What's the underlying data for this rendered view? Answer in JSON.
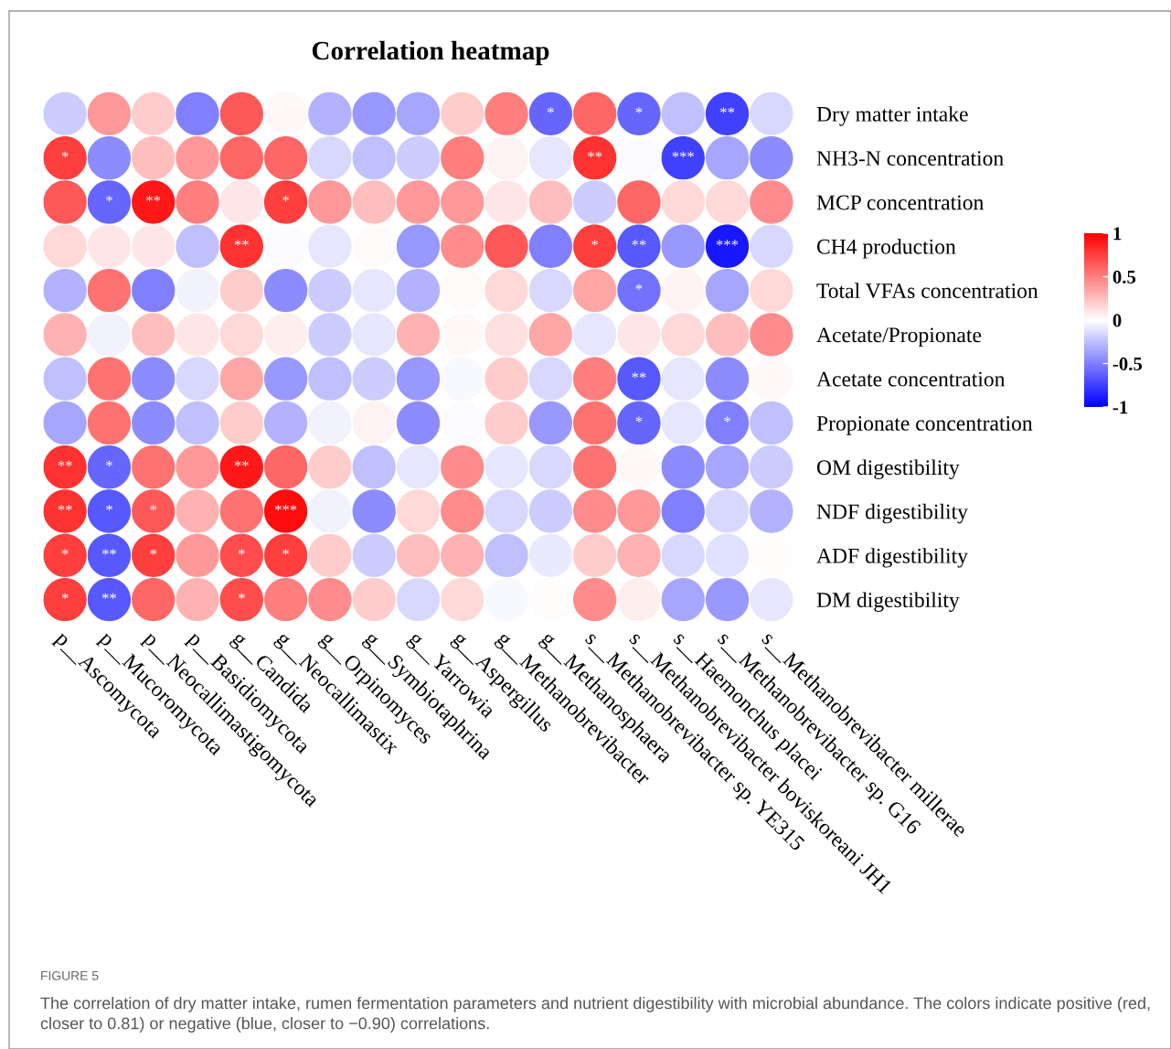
{
  "chart_data": {
    "type": "heatmap",
    "title": "Correlation heatmap",
    "categories": [
      "p__Ascomycota",
      "p__Mucoromycota",
      "p__Neocallimastigomycota",
      "p__Basidiomycota",
      "g__Candida",
      "g__Neocallimastix",
      "g__Orpinomyces",
      "g__Symbiotaphrina",
      "g__Yarrowia",
      "g__Aspergillus",
      "g__Methanobrevibacter",
      "g__Methanosphaera",
      "s__Methanobrevibacter sp. YE315",
      "s__Methanobrevibacter boviskoreani JH1",
      "s__Haemonchus placei",
      "s__Methanobrevibacter sp. G16",
      "s__Methanobrevibacter millerae"
    ],
    "y_categories": [
      "Dry matter intake",
      "NH3-N concentration",
      "MCP concentration",
      "CH4 production",
      "Total VFAs concentration",
      "Acetate/Propionate",
      "Acetate concentration",
      "Propionate concentration",
      "OM digestibility",
      "NDF digestibility",
      "ADF digestibility",
      "DM digestibility"
    ],
    "cells": [
      [
        -0.2,
        0.4,
        0.2,
        -0.5,
        0.65,
        0.03,
        -0.3,
        -0.4,
        -0.35,
        0.2,
        0.5,
        -0.6,
        0.6,
        -0.6,
        -0.25,
        -0.75,
        -0.15
      ],
      [
        0.75,
        -0.45,
        0.25,
        0.4,
        0.6,
        0.6,
        -0.15,
        -0.25,
        -0.2,
        0.5,
        0.05,
        -0.1,
        0.8,
        -0.02,
        -0.75,
        -0.35,
        -0.45
      ],
      [
        0.65,
        -0.6,
        0.9,
        0.5,
        0.1,
        0.75,
        0.4,
        0.25,
        0.4,
        0.4,
        0.1,
        0.25,
        -0.2,
        0.6,
        0.15,
        0.15,
        0.45
      ],
      [
        0.15,
        0.1,
        0.1,
        -0.25,
        0.8,
        -0.02,
        -0.1,
        0.02,
        -0.4,
        0.45,
        0.65,
        -0.5,
        0.75,
        -0.65,
        -0.4,
        -0.9,
        -0.15
      ],
      [
        -0.3,
        0.55,
        -0.5,
        -0.05,
        0.2,
        -0.45,
        -0.2,
        -0.1,
        -0.3,
        0.02,
        0.15,
        -0.15,
        0.35,
        -0.55,
        0.05,
        -0.35,
        0.15
      ],
      [
        0.3,
        -0.05,
        0.25,
        0.1,
        0.15,
        0.07,
        -0.2,
        -0.1,
        0.3,
        0.03,
        0.12,
        0.35,
        -0.1,
        0.1,
        0.15,
        0.25,
        0.45
      ],
      [
        -0.25,
        0.55,
        -0.45,
        -0.15,
        0.35,
        -0.4,
        -0.25,
        -0.2,
        -0.4,
        -0.03,
        0.2,
        -0.15,
        0.5,
        -0.65,
        -0.1,
        -0.45,
        0.03
      ],
      [
        -0.35,
        0.55,
        -0.45,
        -0.25,
        0.2,
        -0.3,
        -0.05,
        0.05,
        -0.45,
        -0.02,
        0.2,
        -0.4,
        0.55,
        -0.6,
        -0.1,
        -0.5,
        -0.25
      ],
      [
        0.8,
        -0.6,
        0.55,
        0.4,
        0.9,
        0.6,
        0.2,
        -0.25,
        -0.1,
        0.45,
        -0.1,
        -0.15,
        0.55,
        0.03,
        -0.45,
        -0.35,
        -0.2
      ],
      [
        0.8,
        -0.65,
        0.65,
        0.3,
        0.55,
        0.95,
        -0.05,
        -0.45,
        0.15,
        0.45,
        -0.15,
        -0.2,
        0.45,
        0.4,
        -0.5,
        -0.15,
        -0.3
      ],
      [
        0.75,
        -0.65,
        0.75,
        0.4,
        0.7,
        0.75,
        0.2,
        -0.2,
        0.25,
        0.3,
        -0.25,
        -0.08,
        0.2,
        0.3,
        -0.15,
        -0.12,
        0.01
      ],
      [
        0.75,
        -0.65,
        0.6,
        0.3,
        0.7,
        0.5,
        0.45,
        0.2,
        -0.15,
        0.15,
        -0.03,
        0.01,
        0.45,
        0.07,
        -0.35,
        -0.4,
        -0.1
      ]
    ],
    "cell_labels": [
      [
        null,
        null,
        null,
        null,
        null,
        null,
        null,
        null,
        null,
        null,
        null,
        "*",
        null,
        "*",
        null,
        "**",
        null
      ],
      [
        "*",
        null,
        null,
        null,
        null,
        null,
        null,
        null,
        null,
        null,
        null,
        null,
        "**",
        null,
        "***",
        null,
        null
      ],
      [
        null,
        "*",
        "**",
        null,
        null,
        "*",
        null,
        null,
        null,
        null,
        null,
        null,
        null,
        null,
        null,
        null,
        null
      ],
      [
        null,
        null,
        null,
        null,
        "**",
        null,
        null,
        null,
        null,
        null,
        null,
        null,
        "*",
        "**",
        null,
        "***",
        null
      ],
      [
        null,
        null,
        null,
        null,
        null,
        null,
        null,
        null,
        null,
        null,
        null,
        null,
        null,
        "*",
        null,
        null,
        null
      ],
      [
        null,
        null,
        null,
        null,
        null,
        null,
        null,
        null,
        null,
        null,
        null,
        null,
        null,
        null,
        null,
        null,
        null
      ],
      [
        null,
        null,
        null,
        null,
        null,
        null,
        null,
        null,
        null,
        null,
        null,
        null,
        null,
        "**",
        null,
        null,
        null
      ],
      [
        null,
        null,
        null,
        null,
        null,
        null,
        null,
        null,
        null,
        null,
        null,
        null,
        null,
        "*",
        null,
        "*",
        null
      ],
      [
        "**",
        "*",
        null,
        null,
        "**",
        null,
        null,
        null,
        null,
        null,
        null,
        null,
        null,
        null,
        null,
        null,
        null
      ],
      [
        "**",
        "*",
        "*",
        null,
        null,
        "***",
        null,
        null,
        null,
        null,
        null,
        null,
        null,
        null,
        null,
        null,
        null
      ],
      [
        "*",
        "**",
        "*",
        null,
        "*",
        "*",
        null,
        null,
        null,
        null,
        null,
        null,
        null,
        null,
        null,
        null,
        null
      ],
      [
        "*",
        "**",
        null,
        null,
        "*",
        null,
        null,
        null,
        null,
        null,
        null,
        null,
        null,
        null,
        null,
        null,
        null
      ]
    ],
    "clim": [
      -1,
      1
    ],
    "cticks": [
      -1,
      -0.5,
      0,
      0.5,
      1
    ],
    "annotations": [
      "FIGURE 5",
      "The correlation of dry matter intake, rumen fermentation parameters and nutrient digestibility with microbial abundance. The colors indicate positive (red, closer to 0.81) or negative (blue, closer to −0.90) correlations."
    ]
  }
}
